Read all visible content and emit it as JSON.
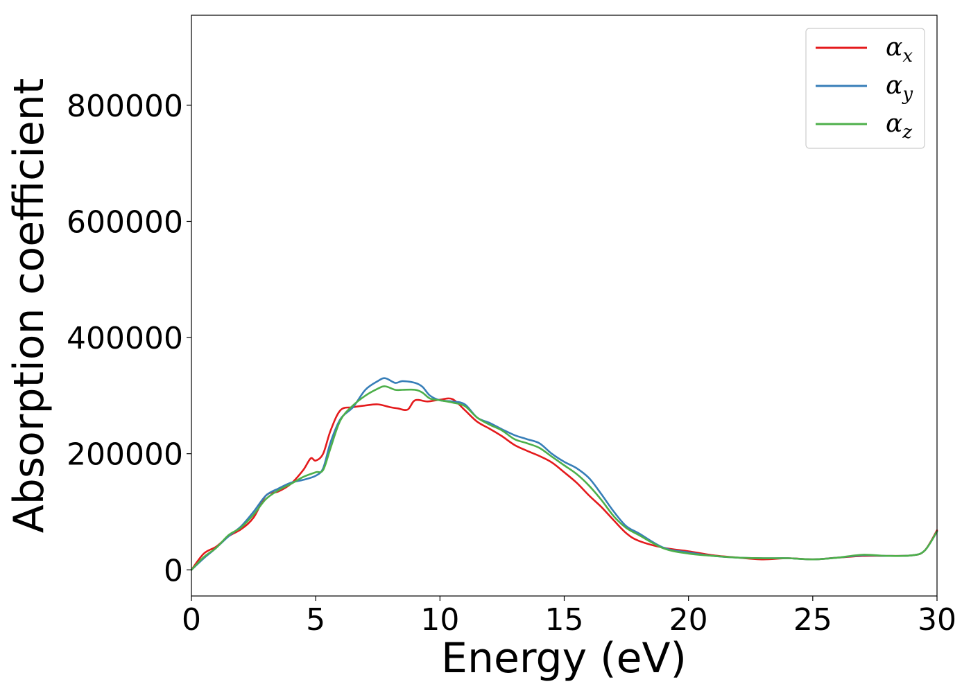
{
  "chart_data": {
    "type": "line",
    "title": "",
    "xlabel": "Energy (eV)",
    "ylabel": "Absorption coefficient",
    "xlim": [
      0,
      30
    ],
    "ylim": [
      -45000,
      955000
    ],
    "xticks": [
      0,
      5,
      10,
      15,
      20,
      25,
      30
    ],
    "yticks": [
      0,
      200000,
      400000,
      600000,
      800000
    ],
    "xtick_labels": [
      "0",
      "5",
      "10",
      "15",
      "20",
      "25",
      "30"
    ],
    "ytick_labels": [
      "0",
      "200000",
      "400000",
      "600000",
      "800000"
    ],
    "grid": false,
    "legend_position": "top-right",
    "series": [
      {
        "name": "α_x",
        "label_base": "α",
        "label_sub": "x",
        "color": "#e41a1c",
        "x": [
          0,
          0.5,
          1,
          1.5,
          2,
          2.5,
          3,
          3.5,
          4,
          4.5,
          4.8,
          5,
          5.3,
          5.6,
          6,
          6.5,
          7,
          7.5,
          8,
          8.3,
          8.7,
          9,
          9.5,
          10,
          10.5,
          11,
          11.5,
          12,
          12.5,
          13,
          13.5,
          14,
          14.5,
          15,
          15.5,
          16,
          16.5,
          17,
          17.5,
          18,
          19,
          20,
          21,
          22,
          23,
          24,
          25,
          26,
          27,
          28,
          29,
          29.5,
          30
        ],
        "y": [
          0,
          28000,
          40000,
          58000,
          70000,
          90000,
          128000,
          135000,
          148000,
          172000,
          192000,
          188000,
          200000,
          240000,
          275000,
          280000,
          283000,
          285000,
          280000,
          278000,
          276000,
          292000,
          290000,
          293000,
          294000,
          275000,
          255000,
          243000,
          230000,
          215000,
          205000,
          196000,
          185000,
          168000,
          150000,
          128000,
          108000,
          85000,
          63000,
          50000,
          38000,
          32000,
          25000,
          21000,
          18000,
          20000,
          18000,
          21000,
          24000,
          24000,
          25000,
          33000,
          68000
        ]
      },
      {
        "name": "α_y",
        "label_base": "α",
        "label_sub": "y",
        "color": "#377eb8",
        "x": [
          0,
          0.5,
          1,
          1.5,
          2,
          2.5,
          3,
          3.5,
          4,
          4.5,
          5,
          5.3,
          5.6,
          6,
          6.5,
          7,
          7.5,
          7.8,
          8.2,
          8.5,
          9,
          9.3,
          9.6,
          10,
          10.5,
          11,
          11.5,
          12,
          12.5,
          13,
          13.5,
          14,
          14.5,
          15,
          15.5,
          16,
          16.5,
          17,
          17.5,
          18,
          19,
          20,
          21,
          22,
          23,
          24,
          25,
          26,
          27,
          28,
          29,
          29.5,
          30
        ],
        "y": [
          0,
          20000,
          38000,
          58000,
          75000,
          100000,
          128000,
          140000,
          150000,
          155000,
          162000,
          175000,
          220000,
          260000,
          280000,
          310000,
          325000,
          330000,
          322000,
          325000,
          322000,
          315000,
          300000,
          292000,
          290000,
          285000,
          262000,
          253000,
          242000,
          232000,
          225000,
          218000,
          200000,
          186000,
          175000,
          158000,
          130000,
          100000,
          75000,
          63000,
          38000,
          30000,
          24000,
          21000,
          20000,
          20000,
          18000,
          21000,
          25000,
          24000,
          25000,
          33000,
          66000
        ]
      },
      {
        "name": "α_z",
        "label_base": "α",
        "label_sub": "z",
        "color": "#4daf4a",
        "x": [
          0,
          0.5,
          1,
          1.5,
          2,
          2.5,
          3,
          3.5,
          4,
          4.5,
          5,
          5.3,
          5.6,
          6,
          6.5,
          7,
          7.5,
          7.8,
          8.2,
          8.5,
          9,
          9.3,
          9.6,
          10,
          10.5,
          11,
          11.5,
          12,
          12.5,
          13,
          13.5,
          14,
          14.5,
          15,
          15.5,
          16,
          16.5,
          17,
          17.5,
          18,
          19,
          20,
          21,
          22,
          23,
          24,
          25,
          26,
          27,
          28,
          29,
          29.5,
          30
        ],
        "y": [
          0,
          22000,
          38000,
          60000,
          73000,
          95000,
          122000,
          137000,
          148000,
          160000,
          168000,
          172000,
          210000,
          258000,
          283000,
          300000,
          312000,
          316000,
          310000,
          310000,
          310000,
          305000,
          295000,
          292000,
          288000,
          282000,
          262000,
          250000,
          240000,
          225000,
          218000,
          210000,
          195000,
          180000,
          165000,
          145000,
          120000,
          92000,
          72000,
          60000,
          37000,
          28000,
          24000,
          21000,
          20000,
          20000,
          18000,
          21000,
          26000,
          24000,
          25000,
          33000,
          66000
        ]
      }
    ]
  }
}
